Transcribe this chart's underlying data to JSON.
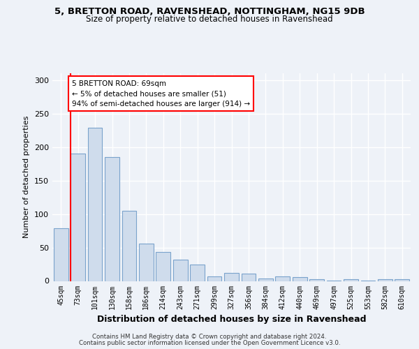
{
  "title1": "5, BRETTON ROAD, RAVENSHEAD, NOTTINGHAM, NG15 9DB",
  "title2": "Size of property relative to detached houses in Ravenshead",
  "xlabel": "Distribution of detached houses by size in Ravenshead",
  "ylabel": "Number of detached properties",
  "categories": [
    "45sqm",
    "73sqm",
    "101sqm",
    "130sqm",
    "158sqm",
    "186sqm",
    "214sqm",
    "243sqm",
    "271sqm",
    "299sqm",
    "327sqm",
    "356sqm",
    "384sqm",
    "412sqm",
    "440sqm",
    "469sqm",
    "497sqm",
    "525sqm",
    "553sqm",
    "582sqm",
    "610sqm"
  ],
  "values": [
    79,
    190,
    229,
    185,
    105,
    56,
    43,
    32,
    24,
    7,
    12,
    11,
    4,
    7,
    6,
    3,
    1,
    3,
    1,
    3,
    3
  ],
  "bar_color": "#cfdcec",
  "bar_edge_color": "#7aa3cc",
  "annotation_box_text": "5 BRETTON ROAD: 69sqm\n← 5% of detached houses are smaller (51)\n94% of semi-detached houses are larger (914) →",
  "annotation_box_color": "white",
  "annotation_box_edge_color": "red",
  "red_line_color": "red",
  "footer1": "Contains HM Land Registry data © Crown copyright and database right 2024.",
  "footer2": "Contains public sector information licensed under the Open Government Licence v3.0.",
  "ylim": [
    0,
    310
  ],
  "background_color": "#eef2f8",
  "grid_color": "white"
}
